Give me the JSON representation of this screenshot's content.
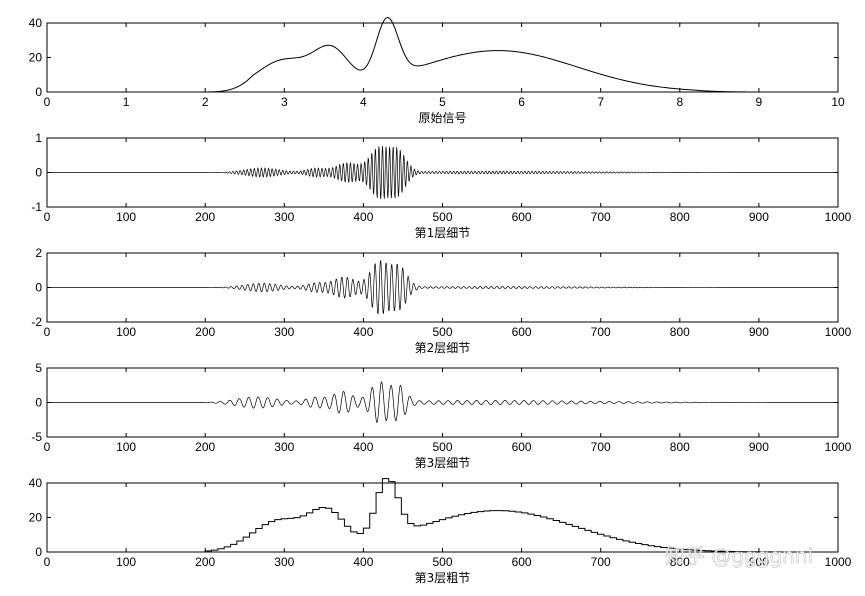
{
  "watermark": "知乎 @ggggnni",
  "chart_data": [
    {
      "type": "line",
      "signal": "original",
      "xlabel": "原始信号",
      "xlim": [
        0,
        10
      ],
      "ylim": [
        0,
        40
      ],
      "xticks": [
        0,
        1,
        2,
        3,
        4,
        5,
        6,
        7,
        8,
        9,
        10
      ],
      "yticks": [
        0,
        20,
        40
      ],
      "line_color": "#000000",
      "components": [
        {
          "kind": "gauss",
          "center": 3.0,
          "width": 0.35,
          "amp": 18
        },
        {
          "kind": "gauss",
          "center": 3.6,
          "width": 0.22,
          "amp": 20
        },
        {
          "kind": "gauss",
          "center": 4.3,
          "width": 0.14,
          "amp": 34
        },
        {
          "kind": "gauss",
          "center": 5.7,
          "width": 1.0,
          "amp": 24
        }
      ],
      "key_points": [
        {
          "x": 2.0,
          "y": 0
        },
        {
          "x": 3.0,
          "y": 18
        },
        {
          "x": 3.2,
          "y": 18
        },
        {
          "x": 3.6,
          "y": 25
        },
        {
          "x": 4.0,
          "y": 10
        },
        {
          "x": 4.32,
          "y": 39
        },
        {
          "x": 4.65,
          "y": 15
        },
        {
          "x": 5.7,
          "y": 24
        },
        {
          "x": 7.0,
          "y": 16
        },
        {
          "x": 8.0,
          "y": 4
        },
        {
          "x": 9.0,
          "y": 0
        }
      ]
    },
    {
      "type": "line",
      "signal": "detail",
      "xlabel": "第1层细节",
      "xlim": [
        0,
        1000
      ],
      "ylim": [
        -1,
        1
      ],
      "xticks": [
        0,
        100,
        200,
        300,
        400,
        500,
        600,
        700,
        800,
        900,
        1000
      ],
      "yticks": [
        -1,
        0,
        1
      ],
      "oscillation_period": 4.5,
      "envelopes": [
        {
          "center": 272,
          "width": 22,
          "amp": 0.13
        },
        {
          "center": 340,
          "width": 12,
          "amp": 0.12
        },
        {
          "center": 380,
          "width": 14,
          "amp": 0.28
        },
        {
          "center": 420,
          "width": 12,
          "amp": 0.72
        },
        {
          "center": 444,
          "width": 10,
          "amp": 0.6
        },
        {
          "center": 570,
          "width": 110,
          "amp": 0.04
        }
      ]
    },
    {
      "type": "line",
      "signal": "detail",
      "xlabel": "第2层细节",
      "xlim": [
        0,
        1000
      ],
      "ylim": [
        -2,
        2
      ],
      "xticks": [
        0,
        100,
        200,
        300,
        400,
        500,
        600,
        700,
        800,
        900,
        1000
      ],
      "yticks": [
        -2,
        0,
        2
      ],
      "oscillation_period": 7,
      "envelopes": [
        {
          "center": 272,
          "width": 22,
          "amp": 0.25
        },
        {
          "center": 340,
          "width": 12,
          "amp": 0.25
        },
        {
          "center": 376,
          "width": 14,
          "amp": 0.6
        },
        {
          "center": 420,
          "width": 11,
          "amp": 1.5
        },
        {
          "center": 445,
          "width": 10,
          "amp": 1.2
        },
        {
          "center": 570,
          "width": 110,
          "amp": 0.06
        }
      ]
    },
    {
      "type": "line",
      "signal": "detail",
      "xlabel": "第3层细节",
      "xlim": [
        0,
        1000
      ],
      "ylim": [
        -5,
        5
      ],
      "xticks": [
        0,
        100,
        200,
        300,
        400,
        500,
        600,
        700,
        800,
        900,
        1000
      ],
      "yticks": [
        -5,
        0,
        5
      ],
      "oscillation_period": 12,
      "envelopes": [
        {
          "center": 265,
          "width": 25,
          "amp": 0.8
        },
        {
          "center": 340,
          "width": 12,
          "amp": 0.7
        },
        {
          "center": 374,
          "width": 12,
          "amp": 1.5
        },
        {
          "center": 420,
          "width": 11,
          "amp": 2.8
        },
        {
          "center": 445,
          "width": 9,
          "amp": 2.2
        },
        {
          "center": 560,
          "width": 130,
          "amp": 0.3
        }
      ]
    },
    {
      "type": "line",
      "signal": "approximation",
      "xlabel": "第3层粗节",
      "xlim": [
        0,
        1000
      ],
      "ylim": [
        0,
        40
      ],
      "xticks": [
        0,
        100,
        200,
        300,
        400,
        500,
        600,
        700,
        800,
        900,
        1000
      ],
      "yticks": [
        0,
        20,
        40
      ],
      "step": 8,
      "components": [
        {
          "kind": "gauss",
          "center": 295,
          "width": 35,
          "amp": 18
        },
        {
          "kind": "gauss",
          "center": 355,
          "width": 22,
          "amp": 19
        },
        {
          "kind": "gauss",
          "center": 430,
          "width": 14,
          "amp": 34
        },
        {
          "kind": "gauss",
          "center": 570,
          "width": 100,
          "amp": 24
        }
      ]
    }
  ]
}
